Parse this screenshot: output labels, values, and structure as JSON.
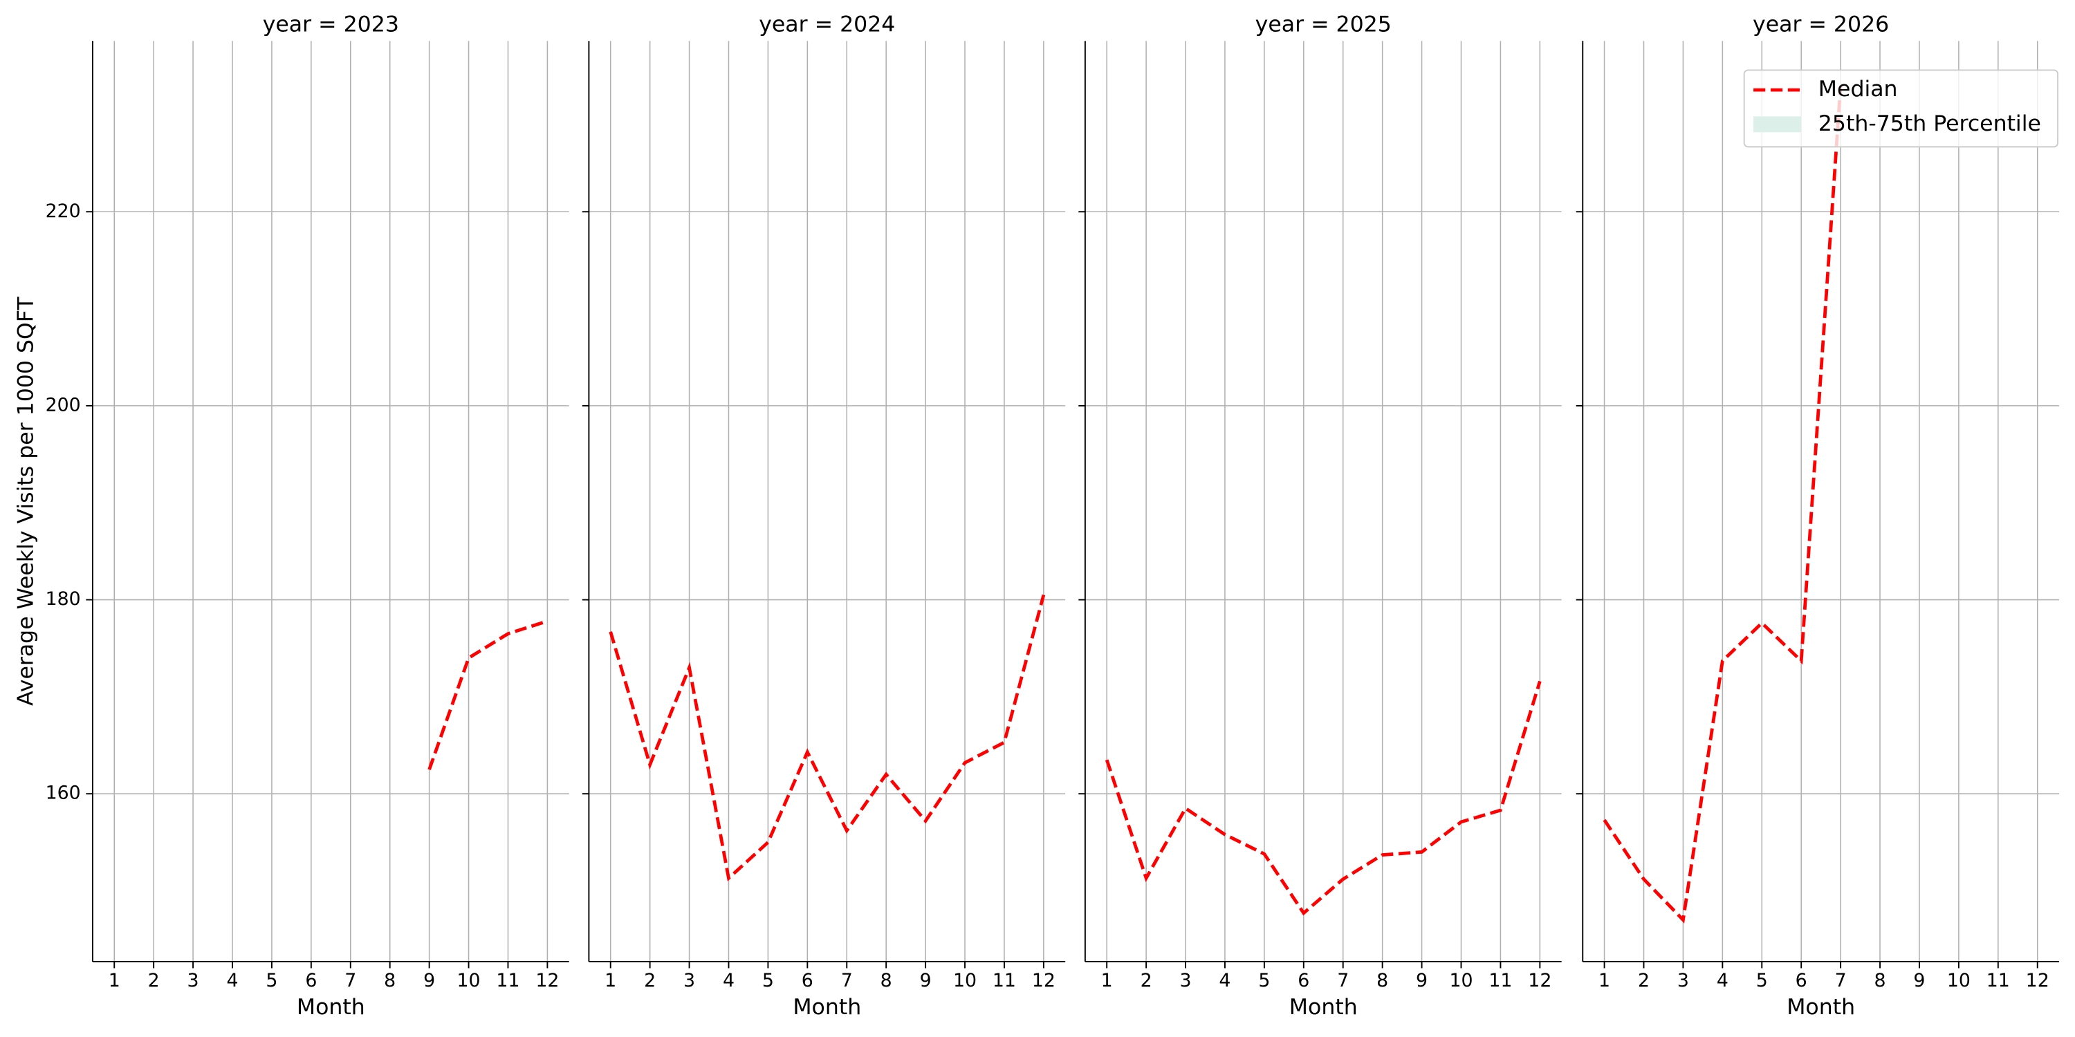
{
  "chart_data": [
    {
      "type": "line",
      "title": "year = 2023",
      "xlabel": "Month",
      "ylabel": "Average Weekly Visits per 1000 SQFT",
      "x": [
        1,
        2,
        3,
        4,
        5,
        6,
        7,
        8,
        9,
        10,
        11,
        12
      ],
      "series": [
        {
          "color": "#ff0000",
          "values": [
            null,
            null,
            null,
            null,
            null,
            null,
            null,
            null,
            162.5,
            174,
            176.5,
            177.8
          ]
        }
      ],
      "xlim": [
        0.45,
        12.55
      ],
      "xticks": [
        1,
        2,
        3,
        4,
        5,
        6,
        7,
        8,
        9,
        10,
        11,
        12
      ],
      "ylim": [
        142.7,
        237.6
      ],
      "yticks": [
        160,
        180,
        200,
        220
      ],
      "grid": true
    },
    {
      "type": "line",
      "title": "year = 2024",
      "xlabel": "Month",
      "x": [
        1,
        2,
        3,
        4,
        5,
        6,
        7,
        8,
        9,
        10,
        11,
        12
      ],
      "series": [
        {
          "color": "#ff0000",
          "values": [
            176.7,
            163,
            173,
            151.3,
            155,
            164.3,
            156.2,
            162,
            157.2,
            163.2,
            165.3,
            180.5
          ]
        }
      ],
      "xlim": [
        0.45,
        12.55
      ],
      "xticks": [
        1,
        2,
        3,
        4,
        5,
        6,
        7,
        8,
        9,
        10,
        11,
        12
      ],
      "ylim": [
        142.7,
        237.6
      ],
      "yticks": [
        160,
        180,
        200,
        220
      ],
      "grid": true
    },
    {
      "type": "line",
      "title": "year = 2025",
      "xlabel": "Month",
      "x": [
        1,
        2,
        3,
        4,
        5,
        6,
        7,
        8,
        9,
        10,
        11,
        12
      ],
      "series": [
        {
          "color": "#ff0000",
          "values": [
            163.5,
            151.3,
            158.5,
            155.8,
            153.8,
            147.7,
            151.2,
            153.7,
            154,
            157.1,
            158.3,
            171.6
          ]
        }
      ],
      "xlim": [
        0.45,
        12.55
      ],
      "xticks": [
        1,
        2,
        3,
        4,
        5,
        6,
        7,
        8,
        9,
        10,
        11,
        12
      ],
      "ylim": [
        142.7,
        237.6
      ],
      "yticks": [
        160,
        180,
        200,
        220
      ],
      "grid": true
    },
    {
      "type": "line",
      "title": "year = 2026",
      "xlabel": "Month",
      "x": [
        1,
        2,
        3,
        4,
        5,
        6,
        7,
        8,
        9,
        10,
        11,
        12
      ],
      "series": [
        {
          "color": "#ff0000",
          "values": [
            157.3,
            151.2,
            147,
            173.7,
            177.6,
            173.7,
            233,
            null,
            null,
            null,
            null,
            null
          ]
        }
      ],
      "xlim": [
        0.45,
        12.55
      ],
      "xticks": [
        1,
        2,
        3,
        4,
        5,
        6,
        7,
        8,
        9,
        10,
        11,
        12
      ],
      "ylim": [
        142.7,
        237.6
      ],
      "yticks": [
        160,
        180,
        200,
        220
      ],
      "grid": true,
      "legend": {
        "loc": "upper right",
        "entries": [
          {
            "label": "Median",
            "color": "#ff0000",
            "style": "dashed"
          },
          {
            "label": "25th-75th Percentile",
            "color": "#dcefe8",
            "style": "patch"
          }
        ]
      }
    }
  ]
}
